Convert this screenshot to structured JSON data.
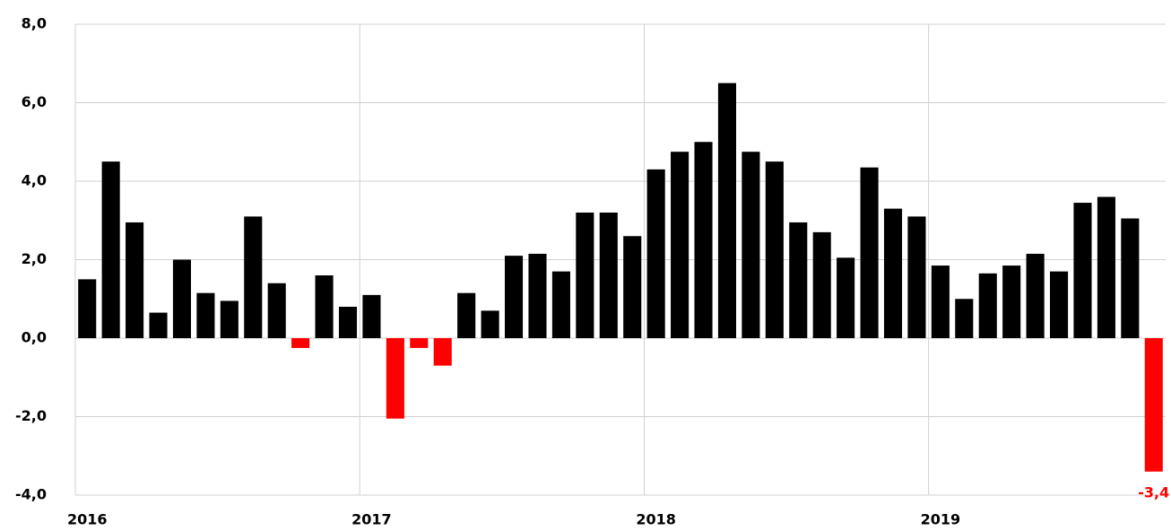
{
  "chart_data": {
    "type": "bar",
    "categories": [
      "2016",
      null,
      null,
      null,
      null,
      null,
      null,
      null,
      null,
      null,
      null,
      null,
      "2017",
      null,
      null,
      null,
      null,
      null,
      null,
      null,
      null,
      null,
      null,
      null,
      "2018",
      null,
      null,
      null,
      null,
      null,
      null,
      null,
      null,
      null,
      null,
      null,
      "2019",
      null,
      null,
      null,
      null,
      null,
      null,
      null,
      null,
      null
    ],
    "values": [
      1.5,
      4.5,
      2.95,
      0.65,
      2.0,
      1.15,
      0.95,
      3.1,
      1.4,
      -0.25,
      1.6,
      0.8,
      1.1,
      -2.05,
      -0.25,
      -0.7,
      1.15,
      0.7,
      2.1,
      2.15,
      1.7,
      3.2,
      3.2,
      2.6,
      4.3,
      4.75,
      5.0,
      6.5,
      4.75,
      4.5,
      2.95,
      2.7,
      2.05,
      4.35,
      3.3,
      3.1,
      1.85,
      1.0,
      1.65,
      1.85,
      2.15,
      1.7,
      3.45,
      3.6,
      3.05,
      -3.4
    ],
    "value_labels": [
      null,
      null,
      null,
      null,
      null,
      null,
      null,
      null,
      null,
      null,
      null,
      null,
      null,
      null,
      null,
      null,
      null,
      null,
      null,
      null,
      null,
      null,
      null,
      null,
      null,
      null,
      null,
      null,
      null,
      null,
      null,
      null,
      null,
      null,
      null,
      null,
      null,
      null,
      null,
      null,
      null,
      null,
      null,
      null,
      null,
      "-3,4"
    ],
    "color": "#000000",
    "negative_color": "#ff0000",
    "ylim": [
      -4,
      8
    ],
    "yticks": [
      {
        "value": -4,
        "label": "-4,0"
      },
      {
        "value": -2,
        "label": "-2,0"
      },
      {
        "value": 0,
        "label": "0,0"
      },
      {
        "value": 2,
        "label": "2,0"
      },
      {
        "value": 4,
        "label": "4,0"
      },
      {
        "value": 6,
        "label": "6,0"
      },
      {
        "value": 8,
        "label": "8,0"
      }
    ],
    "grid": true
  }
}
